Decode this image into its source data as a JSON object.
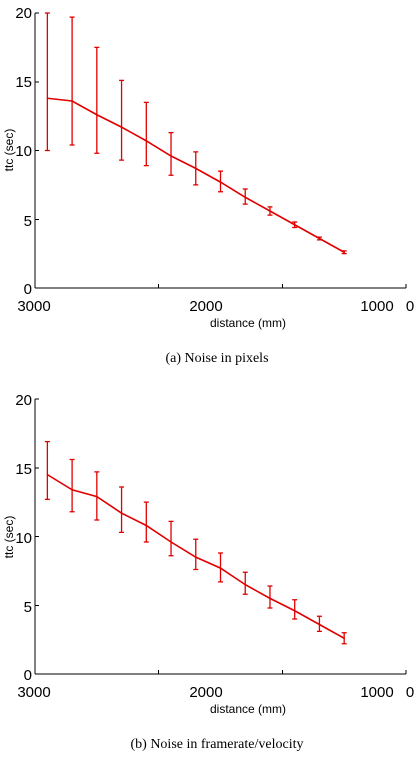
{
  "chart_data": [
    {
      "type": "line",
      "caption": "(a) Noise in pixels",
      "xlabel": "distance (mm)",
      "ylabel": "ttc (sec)",
      "xlim": [
        3000,
        0
      ],
      "ylim": [
        0,
        20
      ],
      "xticks": [
        "3000",
        "2000",
        "1000",
        "0"
      ],
      "yticks": [
        "0",
        "5",
        "10",
        "15",
        "20"
      ],
      "grid": false,
      "color": "#e00000",
      "series": [
        {
          "x": [
            2900,
            2700,
            2500,
            2300,
            2100,
            1900,
            1700,
            1500,
            1300,
            1100,
            900,
            700,
            500
          ],
          "y": [
            13.8,
            13.6,
            12.6,
            11.7,
            10.7,
            9.6,
            8.7,
            7.7,
            6.6,
            5.6,
            4.6,
            3.6,
            2.6
          ],
          "err_low": [
            10.0,
            10.4,
            9.8,
            9.3,
            8.9,
            8.2,
            7.5,
            7.0,
            6.1,
            5.3,
            4.4,
            3.5,
            2.5
          ],
          "err_high": [
            20.0,
            19.7,
            17.5,
            15.1,
            13.5,
            11.3,
            9.9,
            8.5,
            7.2,
            5.9,
            4.8,
            3.7,
            2.7
          ]
        }
      ]
    },
    {
      "type": "line",
      "caption": "(b) Noise in framerate/velocity",
      "xlabel": "distance (mm)",
      "ylabel": "ttc (sec)",
      "xlim": [
        3000,
        0
      ],
      "ylim": [
        0,
        20
      ],
      "xticks": [
        "3000",
        "2000",
        "1000",
        "0"
      ],
      "yticks": [
        "0",
        "5",
        "10",
        "15",
        "20"
      ],
      "grid": false,
      "color": "#e00000",
      "series": [
        {
          "x": [
            2900,
            2700,
            2500,
            2300,
            2100,
            1900,
            1700,
            1500,
            1300,
            1100,
            900,
            700,
            500
          ],
          "y": [
            14.5,
            13.4,
            12.9,
            11.7,
            10.8,
            9.6,
            8.5,
            7.7,
            6.5,
            5.5,
            4.6,
            3.6,
            2.6
          ],
          "err_low": [
            12.7,
            11.8,
            11.2,
            10.3,
            9.6,
            8.6,
            7.6,
            6.7,
            5.8,
            4.8,
            4.0,
            3.1,
            2.2
          ],
          "err_high": [
            16.9,
            15.6,
            14.7,
            13.6,
            12.5,
            11.1,
            9.8,
            8.8,
            7.4,
            6.4,
            5.4,
            4.2,
            3.0
          ]
        }
      ]
    }
  ]
}
